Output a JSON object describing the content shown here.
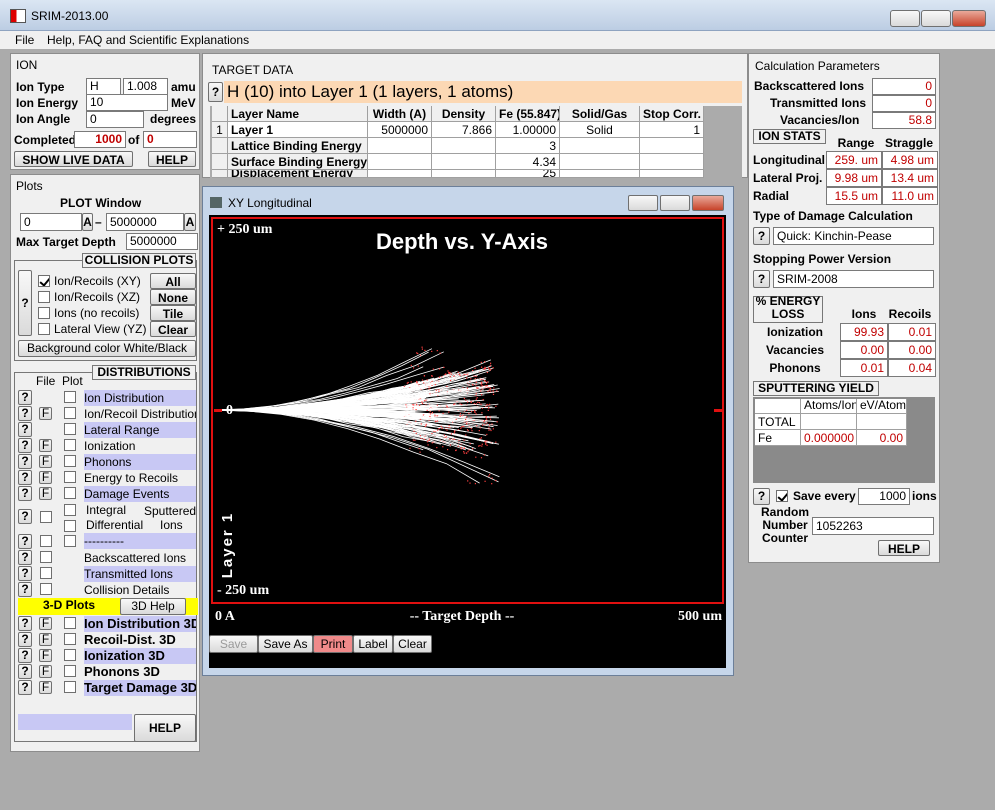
{
  "window": {
    "title": "SRIM-2013.00",
    "menu": [
      "File",
      "Help, FAQ and Scientific Explanations"
    ]
  },
  "common": {
    "help_mark": "?",
    "file_mark": "F"
  },
  "ion": {
    "heading": "ION",
    "type_label": "Ion Type",
    "type": "H",
    "mass": "1.008",
    "mass_unit": "amu",
    "energy_label": "Ion Energy",
    "energy": "10",
    "energy_unit": "MeV",
    "angle_label": "Ion Angle",
    "angle": "0",
    "angle_unit": "degrees",
    "completed_label": "Completed",
    "completed": "1000",
    "of": "of",
    "total": "0",
    "show_live": "SHOW LIVE DATA",
    "help": "HELP"
  },
  "plots": {
    "heading": "Plots",
    "plot_window": "PLOT  Window",
    "from": "0",
    "from_unit": "A",
    "dash": "–",
    "to": "5000000",
    "to_unit": "A",
    "max_depth_label": "Max Target Depth",
    "max_depth": "5000000",
    "collision_heading": "COLLISION PLOTS",
    "options": [
      "Ion/Recoils (XY)",
      "Ion/Recoils (XZ)",
      "Ions (no recoils)",
      "Lateral View (YZ)"
    ],
    "buttons": [
      "All",
      "None",
      "Tile",
      "Clear"
    ],
    "background": "Background color White/Black",
    "file": "File",
    "plot": "Plot",
    "distributions_heading": "DISTRIBUTIONS",
    "distributions": [
      "Ion Distribution",
      "Ion/Recoil Distribution",
      "Lateral Range",
      "Ionization",
      "Phonons",
      "Energy to Recoils",
      "Damage Events"
    ],
    "integral": "Integral",
    "differential": "Differential",
    "sputtered": "Sputtered",
    "sputtered_ions": "Ions",
    "dashes": "----------",
    "backscattered": "Backscattered Ions",
    "transmitted": "Transmitted Ions",
    "collision_details": "Collision Details",
    "plots3d": "3-D Plots",
    "help3d": "3D Help",
    "dist3d": [
      "Ion Distribution 3D",
      "Recoil-Dist. 3D",
      "Ionization 3D",
      "Phonons 3D",
      "Target Damage 3D"
    ],
    "help": "HELP"
  },
  "target": {
    "heading": "TARGET DATA",
    "summary": "H (10) into Layer 1 (1 layers, 1 atoms)",
    "columns": [
      "Layer Name",
      "Width (A)",
      "Density",
      "Fe (55.847)",
      "Solid/Gas",
      "Stop Corr."
    ],
    "rows": [
      {
        "num": "1",
        "name": "Layer 1",
        "width": "5000000",
        "density": "7.866",
        "fe": "1.00000",
        "state": "Solid",
        "stop": "1"
      },
      {
        "name": "Lattice Binding Energy",
        "fe": "3"
      },
      {
        "name": "Surface Binding Energy",
        "fe": "4.34"
      },
      {
        "name": "Displacement Energy",
        "fe": "25"
      }
    ]
  },
  "xy_window": {
    "title": "XY Longitudinal",
    "plot_title": "Depth vs. Y-Axis",
    "y_top": "+ 250 um",
    "y_zero": "0",
    "y_bottom": "- 250 um",
    "layer": "Layer 1",
    "x_left": "0 A",
    "x_axis": "-- Target Depth --",
    "x_right": "500 um",
    "buttons": [
      "Save",
      "Save As",
      "Print",
      "Label",
      "Clear"
    ]
  },
  "calc": {
    "heading": "Calculation Parameters",
    "backscattered_label": "Backscattered Ions",
    "backscattered": "0",
    "transmitted_label": "Transmitted Ions",
    "transmitted": "0",
    "vacancies_label": "Vacancies/Ion",
    "vacancies": "58.8",
    "ion_stats": "ION STATS",
    "range_h": "Range",
    "straggle_h": "Straggle",
    "stats": [
      {
        "label": "Longitudinal",
        "range": "259. um",
        "straggle": "4.98 um"
      },
      {
        "label": "Lateral Proj.",
        "range": "9.98 um",
        "straggle": "13.4 um"
      },
      {
        "label": "Radial",
        "range": "15.5 um",
        "straggle": "11.0 um"
      }
    ],
    "damage_label": "Type of Damage Calculation",
    "damage": "Quick: Kinchin-Pease",
    "stopping_label": "Stopping Power Version",
    "stopping": "SRIM-2008",
    "energy_loss_1": "% ENERGY",
    "energy_loss_2": "LOSS",
    "ions_h": "Ions",
    "recoils_h": "Recoils",
    "losses": [
      {
        "label": "Ionization",
        "ions": "99.93",
        "recoils": "0.01"
      },
      {
        "label": "Vacancies",
        "ions": "0.00",
        "recoils": "0.00"
      },
      {
        "label": "Phonons",
        "ions": "0.01",
        "recoils": "0.04"
      }
    ],
    "sputtering": "SPUTTERING YIELD",
    "sp_cols": [
      "Atoms/Ion",
      "eV/Atom"
    ],
    "sp_rows": [
      {
        "label": "TOTAL"
      },
      {
        "label": "Fe",
        "atoms": "0.000000",
        "ev": "0.00"
      }
    ],
    "save_every_label": "Save every",
    "save_every": "1000",
    "save_unit": "ions",
    "random_label": [
      "Random",
      "Number",
      "Counter"
    ],
    "random": "1052263",
    "help": "HELP"
  }
}
